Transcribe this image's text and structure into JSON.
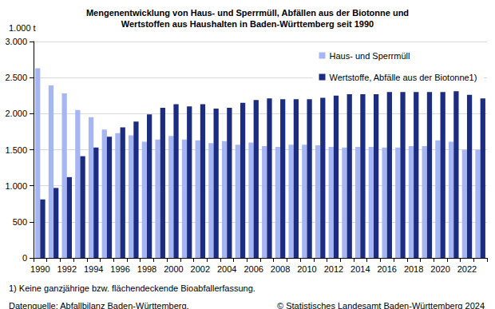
{
  "chart_data": {
    "type": "bar",
    "title": "Mengenentwicklung von Haus- und Sperrmüll, Abfällen aus der Biotonne und\nWertstoffen aus Haushalten in Baden-Württemberg seit 1990",
    "y_label": "1.000 t",
    "footnote": "1) Keine ganzjährige bzw. flächendeckende Bioabfallerfassung.",
    "source": "Datenquelle: Abfallbilanz Baden-Württemberg.",
    "copyright": "© Statistisches Landesamt Baden-Württemberg 2024",
    "categories": [
      "1990",
      null,
      "1992",
      null,
      "1994",
      null,
      "1996",
      null,
      "1998",
      null,
      "2000",
      null,
      "2002",
      null,
      "2004",
      null,
      "2006",
      null,
      "2008",
      null,
      "2010",
      null,
      "2012",
      null,
      "2014",
      null,
      "2016",
      null,
      "2018",
      null,
      "2020",
      null,
      "2022",
      null
    ],
    "series": [
      {
        "name": "Haus- und Sperrmüll",
        "color": "#a6b6f2",
        "values": [
          2630,
          2390,
          2280,
          2050,
          1950,
          1780,
          1730,
          1700,
          1610,
          1640,
          1690,
          1640,
          1630,
          1590,
          1620,
          1570,
          1600,
          1550,
          1540,
          1570,
          1570,
          1560,
          1540,
          1530,
          1540,
          1540,
          1530,
          1530,
          1550,
          1550,
          1630,
          1610,
          1500,
          1500
        ]
      },
      {
        "name": "Wertstoffe, Abfälle aus der Biotonne1)",
        "color": "#1c2c80",
        "values": [
          810,
          970,
          1120,
          1410,
          1530,
          1680,
          1810,
          1890,
          1990,
          2080,
          2130,
          2100,
          2130,
          2070,
          2080,
          2150,
          2190,
          2210,
          2200,
          2200,
          2200,
          2220,
          2250,
          2270,
          2270,
          2270,
          2300,
          2300,
          2300,
          2300,
          2300,
          2310,
          2260,
          2210
        ]
      }
    ],
    "ylim": [
      0,
      3000
    ],
    "yticks": [
      0,
      500,
      {
        "value": 1000,
        "label": "1.000"
      },
      {
        "value": 1500,
        "label": "1.500"
      },
      {
        "value": 2000,
        "label": "2.000"
      },
      {
        "value": 2500,
        "label": "2.500"
      },
      {
        "value": 3000,
        "label": "3.000"
      }
    ],
    "grid": true,
    "legend": "upper right"
  }
}
